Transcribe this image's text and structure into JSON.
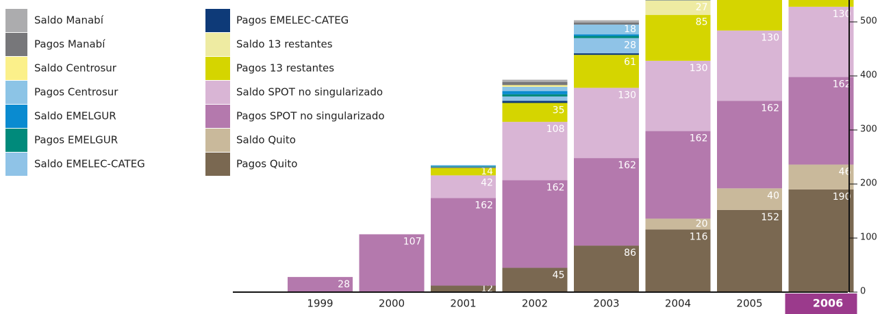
{
  "chart_data": {
    "type": "stacked_bar",
    "categories": [
      "1999",
      "2000",
      "2001",
      "2002",
      "2003",
      "2004",
      "2005",
      "2006"
    ],
    "highlight_category": "2006",
    "highlight_color": "#9b3a8c",
    "ylim": [
      0,
      540.5
    ],
    "yticks": [
      0,
      100,
      200,
      300,
      400,
      500
    ],
    "series": [
      {
        "name": "Pagos Quito",
        "color": "#7a6851",
        "values": [
          0,
          0,
          12,
          45,
          86,
          116,
          152,
          190
        ],
        "value_labels": [
          null,
          null,
          "12",
          "45",
          "86",
          "116",
          "152",
          "190"
        ]
      },
      {
        "name": "Saldo Quito",
        "color": "#c9b99b",
        "values": [
          0,
          0,
          0,
          0,
          0,
          20,
          40,
          46
        ],
        "value_labels": [
          null,
          null,
          null,
          null,
          null,
          "20",
          "40",
          "46"
        ]
      },
      {
        "name": "Pagos SPOT no singularizado",
        "color": "#b479ad",
        "values": [
          28,
          107,
          162,
          162,
          162,
          162,
          162,
          162
        ],
        "value_labels": [
          "28",
          "107",
          "162",
          "162",
          "162",
          "162",
          "162",
          "162"
        ]
      },
      {
        "name": "Saldo SPOT no singularizado",
        "color": "#d9b5d5",
        "values": [
          0,
          0,
          42,
          108,
          130,
          130,
          130,
          130
        ],
        "value_labels": [
          null,
          null,
          "42",
          "108",
          "130",
          "130",
          "130",
          "130"
        ]
      },
      {
        "name": "Pagos 13 restantes",
        "color": "#d5d500",
        "values": [
          0,
          0,
          14,
          35,
          61,
          85,
          60,
          60
        ],
        "value_labels": [
          null,
          null,
          "14",
          "35",
          "61",
          "85",
          null,
          null
        ]
      },
      {
        "name": "Saldo 13 restantes",
        "color": "#eeeba2",
        "values": [
          0,
          0,
          0,
          0,
          0,
          27,
          0,
          0
        ],
        "value_labels": [
          null,
          null,
          null,
          null,
          null,
          "27",
          null,
          null
        ]
      },
      {
        "name": "Pagos EMELEC-CATEG",
        "color": "#0e3a78",
        "values": [
          0,
          0,
          1,
          4,
          3,
          10,
          0,
          0
        ],
        "value_labels": [
          null,
          null,
          null,
          null,
          null,
          null,
          null,
          null
        ]
      },
      {
        "name": "Saldo EMELEC-CATEG",
        "color": "#8fc3e7",
        "values": [
          0,
          0,
          1,
          8,
          28,
          0,
          0,
          0
        ],
        "value_labels": [
          null,
          null,
          null,
          null,
          "28",
          null,
          null,
          null
        ]
      },
      {
        "name": "Pagos EMELGUR",
        "color": "#008a7b",
        "values": [
          0,
          0,
          1,
          4,
          4,
          0,
          0,
          0
        ],
        "value_labels": [
          null,
          null,
          null,
          null,
          null,
          null,
          null,
          null
        ]
      },
      {
        "name": "Saldo EMELGUR",
        "color": "#0a8bd0",
        "values": [
          0,
          0,
          1,
          6,
          3,
          0,
          0,
          0
        ],
        "value_labels": [
          null,
          null,
          null,
          null,
          null,
          null,
          null,
          null
        ]
      },
      {
        "name": "Pagos Centrosur",
        "color": "#8cc4e6",
        "values": [
          0,
          0,
          1,
          8,
          18,
          0,
          0,
          0
        ],
        "value_labels": [
          null,
          null,
          null,
          null,
          "18",
          null,
          null,
          null
        ]
      },
      {
        "name": "Saldo Centrosur",
        "color": "#fbf08a",
        "values": [
          0,
          0,
          0,
          3,
          0,
          0,
          0,
          0
        ],
        "value_labels": [
          null,
          null,
          null,
          null,
          null,
          null,
          null,
          null
        ]
      },
      {
        "name": "Pagos Manabí",
        "color": "#77777a",
        "values": [
          0,
          0,
          0,
          6,
          4,
          0,
          0,
          0
        ],
        "value_labels": [
          null,
          null,
          null,
          null,
          null,
          null,
          null,
          null
        ]
      },
      {
        "name": "Saldo Manabí",
        "color": "#acacae",
        "values": [
          0,
          0,
          0,
          4,
          4,
          0,
          0,
          0
        ],
        "value_labels": [
          null,
          null,
          null,
          null,
          null,
          null,
          null,
          null
        ]
      }
    ]
  }
}
